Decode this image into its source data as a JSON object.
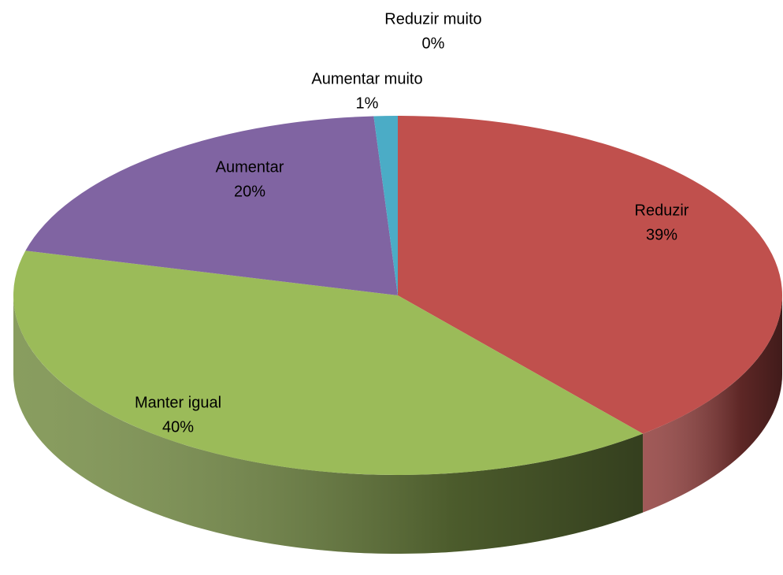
{
  "chart_data": {
    "type": "pie3d",
    "categories": [
      "Reduzir muito",
      "Reduzir",
      "Manter igual",
      "Aumentar",
      "Aumentar muito"
    ],
    "values": [
      0,
      39,
      40,
      20,
      1
    ],
    "value_labels": [
      "0%",
      "39%",
      "40%",
      "20%",
      "1%"
    ],
    "colors": [
      "#4f81bd",
      "#c0504d",
      "#9bbb59",
      "#8064a2",
      "#4bacc6"
    ]
  }
}
